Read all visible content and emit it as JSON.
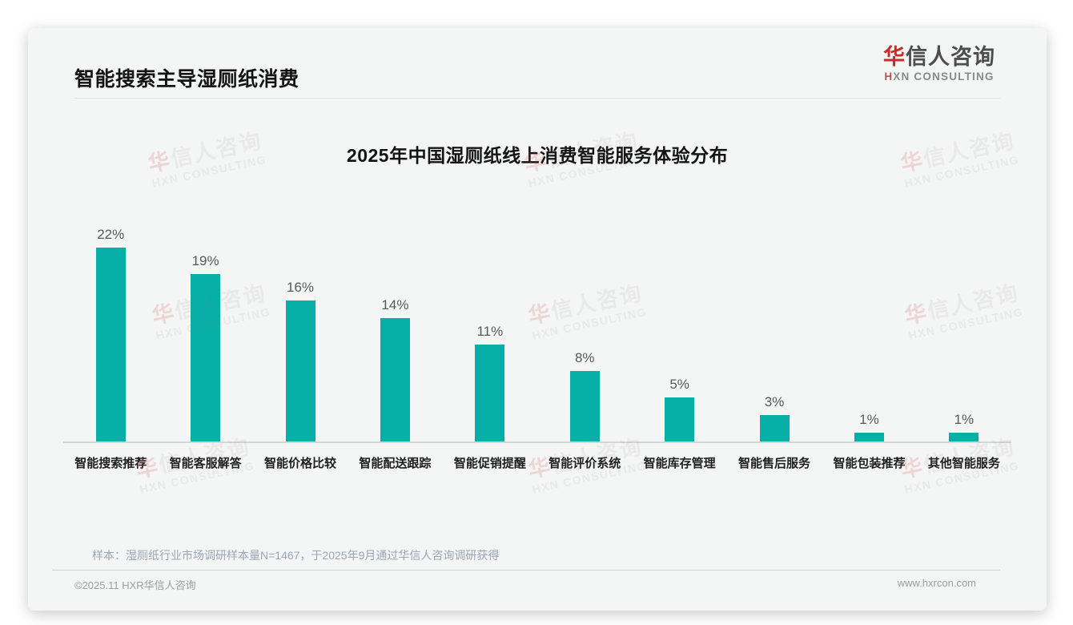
{
  "header": {
    "title": "智能搜索主导湿厕纸消费"
  },
  "logo": {
    "cn_first": "华",
    "cn_rest": "信人咨询",
    "en_first": "H",
    "en_rest": "XN CONSULTING"
  },
  "chart_data": {
    "type": "bar",
    "title": "2025年中国湿厕纸线上消费智能服务体验分布",
    "categories": [
      "智能搜索推荐",
      "智能客服解答",
      "智能价格比较",
      "智能配送跟踪",
      "智能促销提醒",
      "智能评价系统",
      "智能库存管理",
      "智能售后服务",
      "智能包装推荐",
      "其他智能服务"
    ],
    "values": [
      22,
      19,
      16,
      14,
      11,
      8,
      5,
      3,
      1,
      1
    ],
    "unit": "%",
    "value_label_suffix": "%",
    "xlabel": "",
    "ylabel": "",
    "ylim": [
      0,
      24
    ],
    "grid": false,
    "legend": false,
    "bar_color": "#06b0a7"
  },
  "footnote": {
    "sample": "样本：湿厕纸行业市场调研样本量N=1467，于2025年9月通过华信人咨询调研获得"
  },
  "footer": {
    "copyright": "©2025.11 HXR华信人咨询",
    "website": "www.hxrcon.com"
  },
  "watermark": {
    "cn_first": "华",
    "cn_rest": "信人咨询",
    "en": "HXN CONSULTING"
  },
  "colors": {
    "bar": "#06b0a7",
    "brand_red": "#cc2a26",
    "note_text": "#9aa6b8"
  }
}
